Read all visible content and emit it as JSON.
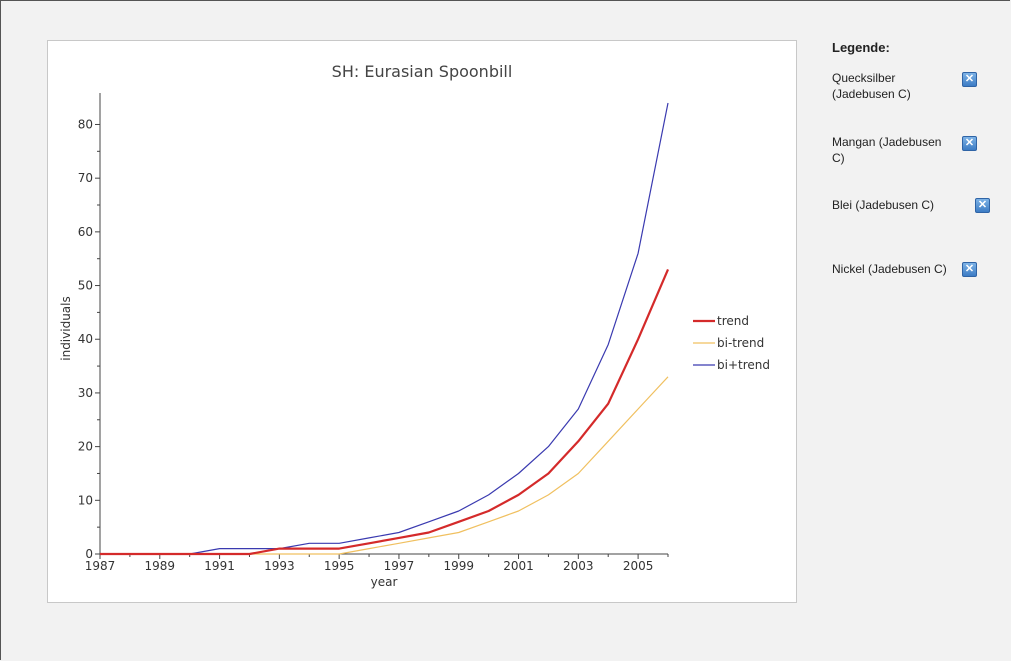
{
  "chart_data": {
    "type": "line",
    "title": "SH: Eurasian Spoonbill",
    "xlabel": "year",
    "ylabel": "individuals",
    "xlim": [
      1987,
      2006
    ],
    "ylim": [
      0,
      84
    ],
    "x_ticks": [
      "1987",
      "1989",
      "1991",
      "1993",
      "1995",
      "1997",
      "1999",
      "2001",
      "2003",
      "2005"
    ],
    "y_ticks": [
      "0",
      "10",
      "20",
      "30",
      "40",
      "50",
      "60",
      "70",
      "80"
    ],
    "x": [
      1987,
      1988,
      1989,
      1990,
      1991,
      1992,
      1993,
      1994,
      1995,
      1996,
      1997,
      1998,
      1999,
      2000,
      2001,
      2002,
      2003,
      2004,
      2005,
      2006
    ],
    "series": [
      {
        "name": "trend",
        "color": "#d42a2a",
        "values": [
          0,
          0,
          0,
          0,
          0,
          0,
          1,
          1,
          1,
          2,
          3,
          4,
          6,
          8,
          11,
          15,
          21,
          28,
          40,
          53
        ]
      },
      {
        "name": "bi-trend",
        "color": "#f0c060",
        "values": [
          0,
          0,
          0,
          0,
          0,
          0,
          0,
          0,
          0,
          1,
          2,
          3,
          4,
          6,
          8,
          11,
          15,
          21,
          27,
          33
        ]
      },
      {
        "name": "bi+trend",
        "color": "#3a3ab0",
        "values": [
          0,
          0,
          0,
          0,
          1,
          1,
          1,
          2,
          2,
          3,
          4,
          6,
          8,
          11,
          15,
          20,
          27,
          39,
          56,
          84
        ]
      }
    ],
    "legend_position": "right",
    "grid": false
  },
  "legend_panel": {
    "title": "Legende:",
    "remove_icon": "close-icon",
    "items": [
      {
        "label": "Quecksilber (Jadebusen C)"
      },
      {
        "label": "Mangan (Jadebusen C)"
      },
      {
        "label": "Blei (Jadebusen C)"
      },
      {
        "label": "Nickel (Jadebusen C)"
      }
    ]
  }
}
